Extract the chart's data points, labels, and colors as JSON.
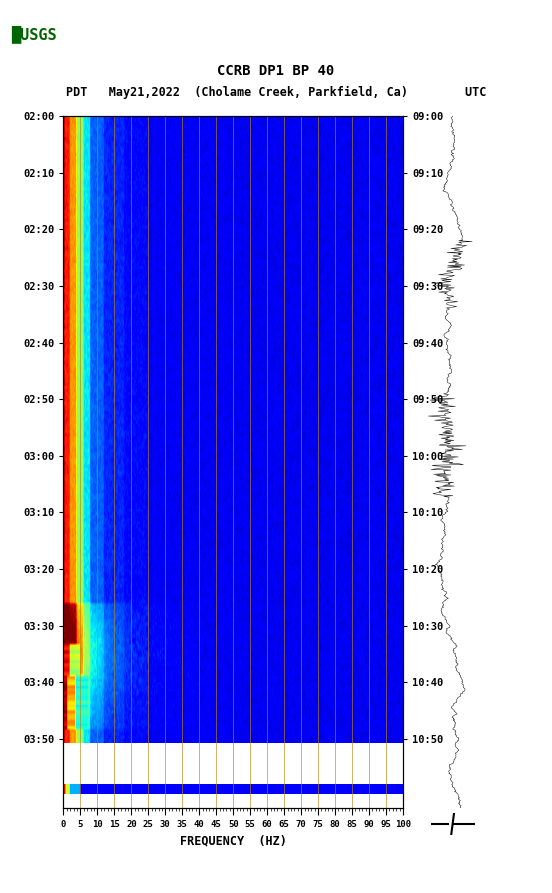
{
  "title_line1": "CCRB DP1 BP 40",
  "title_line2_left": "PDT   May21,2022  (Cholame Creek, Parkfield, Ca)",
  "title_line2_right": "UTC",
  "xlabel": "FREQUENCY  (HZ)",
  "freq_ticks": [
    0,
    5,
    10,
    15,
    20,
    25,
    30,
    35,
    40,
    45,
    50,
    55,
    60,
    65,
    70,
    75,
    80,
    85,
    90,
    95,
    100
  ],
  "time_labels_left": [
    "02:00",
    "02:10",
    "02:20",
    "02:30",
    "02:40",
    "02:50",
    "03:00",
    "03:10",
    "03:20",
    "03:30",
    "03:40",
    "03:50"
  ],
  "time_labels_right": [
    "09:00",
    "09:10",
    "09:20",
    "09:30",
    "09:40",
    "09:50",
    "10:00",
    "10:10",
    "10:20",
    "10:30",
    "10:40",
    "10:50"
  ],
  "n_time_rows": 220,
  "n_freq_cols": 400,
  "background_color": "#ffffff",
  "vertical_line_color": "#b8860b",
  "fig_width": 5.52,
  "fig_height": 8.93,
  "dpi": 100,
  "usgs_color": "#006400"
}
